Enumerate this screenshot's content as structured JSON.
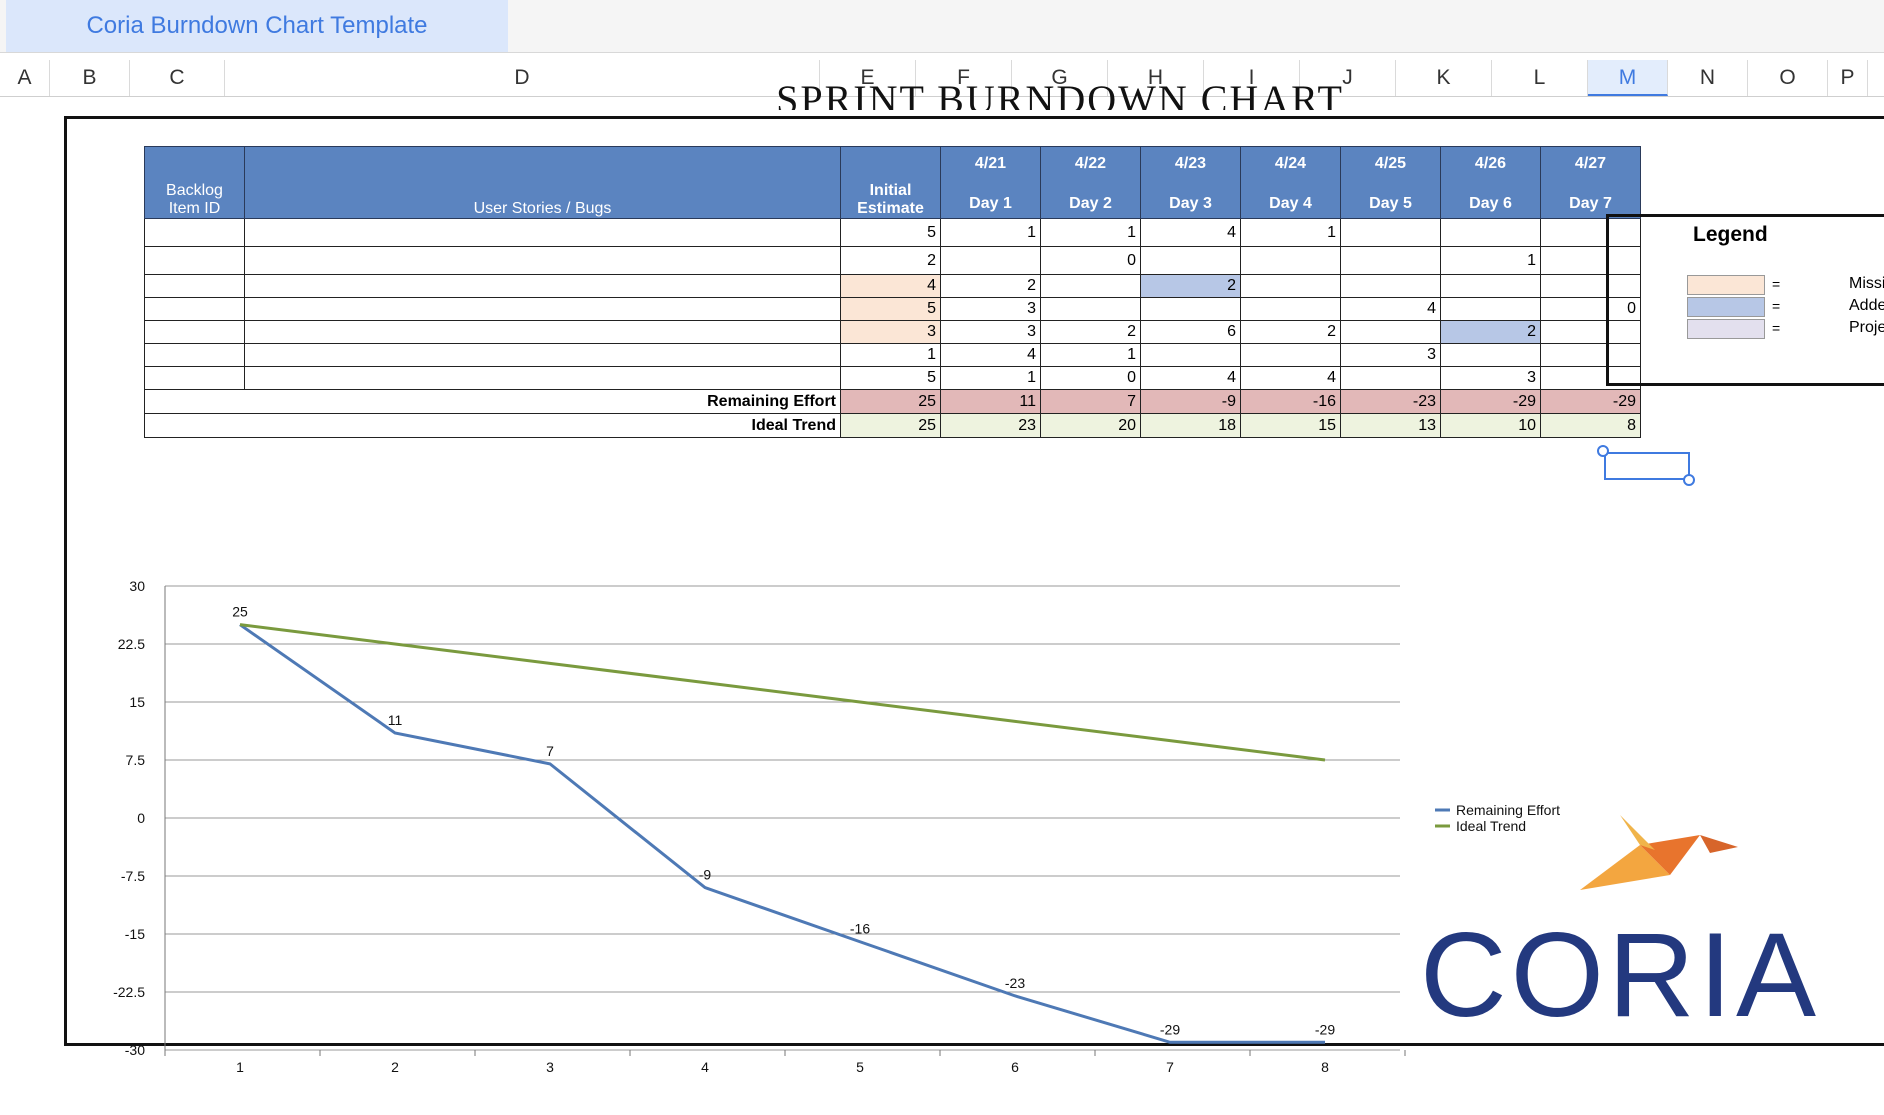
{
  "window": {
    "tab_title": "Coria Burndown Chart Template"
  },
  "columns": [
    "A",
    "B",
    "C",
    "D",
    "E",
    "F",
    "G",
    "H",
    "I",
    "J",
    "K",
    "L",
    "M",
    "N",
    "O",
    "P"
  ],
  "selected_column": "M",
  "sheet": {
    "title": "SPRINT BURNDOWN CHART"
  },
  "table": {
    "h_backlog": "Backlog Item ID",
    "h_stories": "User Stories / Bugs",
    "h_estimate": "Initial Estimate",
    "dates": [
      "4/21",
      "4/22",
      "4/23",
      "4/24",
      "4/25",
      "4/26",
      "4/27"
    ],
    "days": [
      "Day 1",
      "Day 2",
      "Day 3",
      "Day 4",
      "Day 5",
      "Day 6",
      "Day 7"
    ],
    "rows": [
      {
        "estimate": "5",
        "days": [
          "1",
          "1",
          "4",
          "1",
          "",
          "",
          ""
        ]
      },
      {
        "estimate": "2",
        "days": [
          "",
          "0",
          "",
          "",
          "",
          "1",
          ""
        ]
      },
      {
        "estimate": "4",
        "days": [
          "2",
          "",
          "2",
          "",
          "",
          "",
          ""
        ]
      },
      {
        "estimate": "5",
        "days": [
          "3",
          "",
          "",
          "",
          "4",
          "",
          "0"
        ]
      },
      {
        "estimate": "3",
        "days": [
          "3",
          "2",
          "6",
          "2",
          "",
          "2",
          ""
        ]
      },
      {
        "estimate": "1",
        "days": [
          "4",
          "1",
          "",
          "",
          "3",
          "",
          ""
        ]
      },
      {
        "estimate": "5",
        "days": [
          "1",
          "0",
          "4",
          "4",
          "",
          "3",
          ""
        ]
      }
    ],
    "remaining_label": "Remaining Effort",
    "remaining": [
      "25",
      "11",
      "7",
      "-9",
      "-16",
      "-23",
      "-29",
      "-29"
    ],
    "ideal_label": "Ideal Trend",
    "ideal": [
      "25",
      "23",
      "20",
      "18",
      "15",
      "13",
      "10",
      "8"
    ]
  },
  "legend": {
    "title": "Legend",
    "items": [
      {
        "sym": "=",
        "text": "Missi",
        "color": "#fbe6d6"
      },
      {
        "sym": "=",
        "text": "Adde",
        "color": "#b7c7e6"
      },
      {
        "sym": "=",
        "text": "Proje",
        "color": "#e3e0ee"
      }
    ]
  },
  "chart_data": {
    "type": "line",
    "x": [
      1,
      2,
      3,
      4,
      5,
      6,
      7,
      8
    ],
    "series": [
      {
        "name": "Remaining Effort",
        "values": [
          25,
          11,
          7,
          -9,
          -16,
          -23,
          -29,
          -29
        ],
        "color": "#4e79b5"
      },
      {
        "name": "Ideal Trend",
        "values": [
          25,
          22.5,
          20,
          17.5,
          15,
          12.5,
          10,
          7.5
        ],
        "color": "#7a9a3e"
      }
    ],
    "point_labels": [
      "25",
      "11",
      "7",
      "-9",
      "-16",
      "-23",
      "-29",
      "-29"
    ],
    "yticks": [
      "30",
      "22.5",
      "15",
      "7.5",
      "0",
      "-7.5",
      "-15",
      "-22.5",
      "-30"
    ],
    "xticks": [
      "1",
      "2",
      "3",
      "4",
      "5",
      "6",
      "7",
      "8"
    ],
    "ylim": [
      -30,
      30
    ],
    "grid": true,
    "legend_position": "right"
  },
  "logo": {
    "text": "CORIA"
  }
}
